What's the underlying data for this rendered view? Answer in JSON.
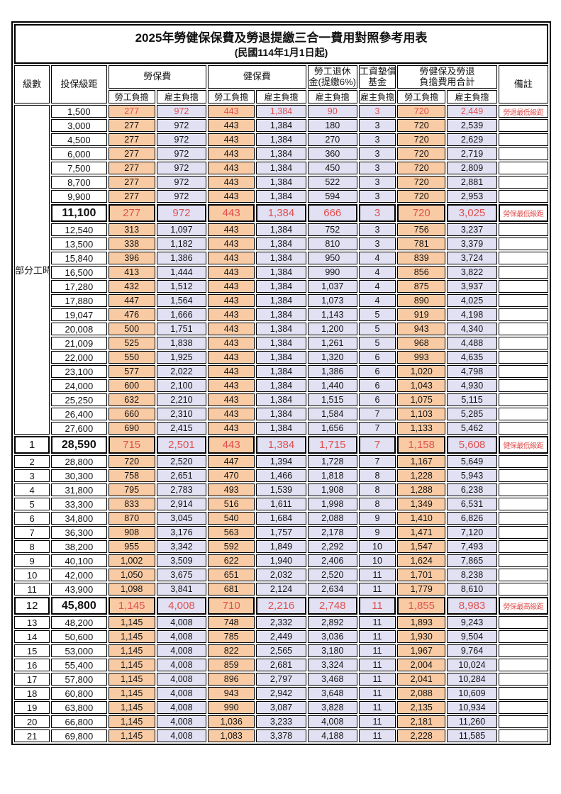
{
  "title": "2025年勞健保保費及勞退提繳三合一費用對照參考用表",
  "subtitle": "(民國114年1月1日起)",
  "colors": {
    "employee_bg": "#F9CBA4",
    "employee_header_bg": "#F5BB85",
    "employer_bg": "#E1E1F3",
    "red_text": "#E0504F",
    "border": "#000000"
  },
  "header": {
    "level": "級數",
    "bracket": "投保級距",
    "labor_ins": "勞保費",
    "health_ins": "健保費",
    "pension_line1": "勞工退休",
    "pension_line2": "金(提繳6%)",
    "wage_fund_line1": "工資墊償",
    "wage_fund_line2": "基金",
    "total_line1": "勞健保及勞退",
    "total_line2": "負擔費用合計",
    "remark": "備註",
    "employee": "勞工負擔",
    "employer": "雇主負擔"
  },
  "part_time": {
    "label": "部分工時",
    "rowspan": 23
  },
  "rows": [
    {
      "level": null,
      "bracket": "1,500",
      "values": [
        "277",
        "972",
        "443",
        "1,384",
        "90",
        "3",
        "720",
        "2,449"
      ],
      "remark": "勞退最低級距",
      "red": true,
      "big": false
    },
    {
      "level": null,
      "bracket": "3,000",
      "values": [
        "277",
        "972",
        "443",
        "1,384",
        "180",
        "3",
        "720",
        "2,539"
      ],
      "remark": "",
      "red": false,
      "big": false
    },
    {
      "level": null,
      "bracket": "4,500",
      "values": [
        "277",
        "972",
        "443",
        "1,384",
        "270",
        "3",
        "720",
        "2,629"
      ],
      "remark": "",
      "red": false,
      "big": false
    },
    {
      "level": null,
      "bracket": "6,000",
      "values": [
        "277",
        "972",
        "443",
        "1,384",
        "360",
        "3",
        "720",
        "2,719"
      ],
      "remark": "",
      "red": false,
      "big": false
    },
    {
      "level": null,
      "bracket": "7,500",
      "values": [
        "277",
        "972",
        "443",
        "1,384",
        "450",
        "3",
        "720",
        "2,809"
      ],
      "remark": "",
      "red": false,
      "big": false
    },
    {
      "level": null,
      "bracket": "8,700",
      "values": [
        "277",
        "972",
        "443",
        "1,384",
        "522",
        "3",
        "720",
        "2,881"
      ],
      "remark": "",
      "red": false,
      "big": false
    },
    {
      "level": null,
      "bracket": "9,900",
      "values": [
        "277",
        "972",
        "443",
        "1,384",
        "594",
        "3",
        "720",
        "2,953"
      ],
      "remark": "",
      "red": false,
      "big": false
    },
    {
      "level": null,
      "bracket": "11,100",
      "values": [
        "277",
        "972",
        "443",
        "1,384",
        "666",
        "3",
        "720",
        "3,025"
      ],
      "remark": "勞保最低級距",
      "red": true,
      "big": true
    },
    {
      "level": null,
      "bracket": "12,540",
      "values": [
        "313",
        "1,097",
        "443",
        "1,384",
        "752",
        "3",
        "756",
        "3,237"
      ],
      "remark": "",
      "red": false,
      "big": false
    },
    {
      "level": null,
      "bracket": "13,500",
      "values": [
        "338",
        "1,182",
        "443",
        "1,384",
        "810",
        "3",
        "781",
        "3,379"
      ],
      "remark": "",
      "red": false,
      "big": false
    },
    {
      "level": null,
      "bracket": "15,840",
      "values": [
        "396",
        "1,386",
        "443",
        "1,384",
        "950",
        "4",
        "839",
        "3,724"
      ],
      "remark": "",
      "red": false,
      "big": false
    },
    {
      "level": null,
      "bracket": "16,500",
      "values": [
        "413",
        "1,444",
        "443",
        "1,384",
        "990",
        "4",
        "856",
        "3,822"
      ],
      "remark": "",
      "red": false,
      "big": false
    },
    {
      "level": null,
      "bracket": "17,280",
      "values": [
        "432",
        "1,512",
        "443",
        "1,384",
        "1,037",
        "4",
        "875",
        "3,937"
      ],
      "remark": "",
      "red": false,
      "big": false
    },
    {
      "level": null,
      "bracket": "17,880",
      "values": [
        "447",
        "1,564",
        "443",
        "1,384",
        "1,073",
        "4",
        "890",
        "4,025"
      ],
      "remark": "",
      "red": false,
      "big": false
    },
    {
      "level": null,
      "bracket": "19,047",
      "values": [
        "476",
        "1,666",
        "443",
        "1,384",
        "1,143",
        "5",
        "919",
        "4,198"
      ],
      "remark": "",
      "red": false,
      "big": false
    },
    {
      "level": null,
      "bracket": "20,008",
      "values": [
        "500",
        "1,751",
        "443",
        "1,384",
        "1,200",
        "5",
        "943",
        "4,340"
      ],
      "remark": "",
      "red": false,
      "big": false
    },
    {
      "level": null,
      "bracket": "21,009",
      "values": [
        "525",
        "1,838",
        "443",
        "1,384",
        "1,261",
        "5",
        "968",
        "4,488"
      ],
      "remark": "",
      "red": false,
      "big": false
    },
    {
      "level": null,
      "bracket": "22,000",
      "values": [
        "550",
        "1,925",
        "443",
        "1,384",
        "1,320",
        "6",
        "993",
        "4,635"
      ],
      "remark": "",
      "red": false,
      "big": false
    },
    {
      "level": null,
      "bracket": "23,100",
      "values": [
        "577",
        "2,022",
        "443",
        "1,384",
        "1,386",
        "6",
        "1,020",
        "4,798"
      ],
      "remark": "",
      "red": false,
      "big": false
    },
    {
      "level": null,
      "bracket": "24,000",
      "values": [
        "600",
        "2,100",
        "443",
        "1,384",
        "1,440",
        "6",
        "1,043",
        "4,930"
      ],
      "remark": "",
      "red": false,
      "big": false
    },
    {
      "level": null,
      "bracket": "25,250",
      "values": [
        "632",
        "2,210",
        "443",
        "1,384",
        "1,515",
        "6",
        "1,075",
        "5,115"
      ],
      "remark": "",
      "red": false,
      "big": false
    },
    {
      "level": null,
      "bracket": "26,400",
      "values": [
        "660",
        "2,310",
        "443",
        "1,384",
        "1,584",
        "7",
        "1,103",
        "5,285"
      ],
      "remark": "",
      "red": false,
      "big": false
    },
    {
      "level": null,
      "bracket": "27,600",
      "values": [
        "690",
        "2,415",
        "443",
        "1,384",
        "1,656",
        "7",
        "1,133",
        "5,462"
      ],
      "remark": "",
      "red": false,
      "big": false
    },
    {
      "level": "1",
      "bracket": "28,590",
      "values": [
        "715",
        "2,501",
        "443",
        "1,384",
        "1,715",
        "7",
        "1,158",
        "5,608"
      ],
      "remark": "健保最低級距",
      "red": true,
      "big": true
    },
    {
      "level": "2",
      "bracket": "28,800",
      "values": [
        "720",
        "2,520",
        "447",
        "1,394",
        "1,728",
        "7",
        "1,167",
        "5,649"
      ],
      "remark": "",
      "red": false,
      "big": false
    },
    {
      "level": "3",
      "bracket": "30,300",
      "values": [
        "758",
        "2,651",
        "470",
        "1,466",
        "1,818",
        "8",
        "1,228",
        "5,943"
      ],
      "remark": "",
      "red": false,
      "big": false
    },
    {
      "level": "4",
      "bracket": "31,800",
      "values": [
        "795",
        "2,783",
        "493",
        "1,539",
        "1,908",
        "8",
        "1,288",
        "6,238"
      ],
      "remark": "",
      "red": false,
      "big": false
    },
    {
      "level": "5",
      "bracket": "33,300",
      "values": [
        "833",
        "2,914",
        "516",
        "1,611",
        "1,998",
        "8",
        "1,349",
        "6,531"
      ],
      "remark": "",
      "red": false,
      "big": false
    },
    {
      "level": "6",
      "bracket": "34,800",
      "values": [
        "870",
        "3,045",
        "540",
        "1,684",
        "2,088",
        "9",
        "1,410",
        "6,826"
      ],
      "remark": "",
      "red": false,
      "big": false
    },
    {
      "level": "7",
      "bracket": "36,300",
      "values": [
        "908",
        "3,176",
        "563",
        "1,757",
        "2,178",
        "9",
        "1,471",
        "7,120"
      ],
      "remark": "",
      "red": false,
      "big": false
    },
    {
      "level": "8",
      "bracket": "38,200",
      "values": [
        "955",
        "3,342",
        "592",
        "1,849",
        "2,292",
        "10",
        "1,547",
        "7,493"
      ],
      "remark": "",
      "red": false,
      "big": false
    },
    {
      "level": "9",
      "bracket": "40,100",
      "values": [
        "1,002",
        "3,509",
        "622",
        "1,940",
        "2,406",
        "10",
        "1,624",
        "7,865"
      ],
      "remark": "",
      "red": false,
      "big": false
    },
    {
      "level": "10",
      "bracket": "42,000",
      "values": [
        "1,050",
        "3,675",
        "651",
        "2,032",
        "2,520",
        "11",
        "1,701",
        "8,238"
      ],
      "remark": "",
      "red": false,
      "big": false
    },
    {
      "level": "11",
      "bracket": "43,900",
      "values": [
        "1,098",
        "3,841",
        "681",
        "2,124",
        "2,634",
        "11",
        "1,779",
        "8,610"
      ],
      "remark": "",
      "red": false,
      "big": false
    },
    {
      "level": "12",
      "bracket": "45,800",
      "values": [
        "1,145",
        "4,008",
        "710",
        "2,216",
        "2,748",
        "11",
        "1,855",
        "8,983"
      ],
      "remark": "勞保最高級距",
      "red": true,
      "big": true
    },
    {
      "level": "13",
      "bracket": "48,200",
      "values": [
        "1,145",
        "4,008",
        "748",
        "2,332",
        "2,892",
        "11",
        "1,893",
        "9,243"
      ],
      "remark": "",
      "red": false,
      "big": false
    },
    {
      "level": "14",
      "bracket": "50,600",
      "values": [
        "1,145",
        "4,008",
        "785",
        "2,449",
        "3,036",
        "11",
        "1,930",
        "9,504"
      ],
      "remark": "",
      "red": false,
      "big": false
    },
    {
      "level": "15",
      "bracket": "53,000",
      "values": [
        "1,145",
        "4,008",
        "822",
        "2,565",
        "3,180",
        "11",
        "1,967",
        "9,764"
      ],
      "remark": "",
      "red": false,
      "big": false
    },
    {
      "level": "16",
      "bracket": "55,400",
      "values": [
        "1,145",
        "4,008",
        "859",
        "2,681",
        "3,324",
        "11",
        "2,004",
        "10,024"
      ],
      "remark": "",
      "red": false,
      "big": false
    },
    {
      "level": "17",
      "bracket": "57,800",
      "values": [
        "1,145",
        "4,008",
        "896",
        "2,797",
        "3,468",
        "11",
        "2,041",
        "10,284"
      ],
      "remark": "",
      "red": false,
      "big": false
    },
    {
      "level": "18",
      "bracket": "60,800",
      "values": [
        "1,145",
        "4,008",
        "943",
        "2,942",
        "3,648",
        "11",
        "2,088",
        "10,609"
      ],
      "remark": "",
      "red": false,
      "big": false
    },
    {
      "level": "19",
      "bracket": "63,800",
      "values": [
        "1,145",
        "4,008",
        "990",
        "3,087",
        "3,828",
        "11",
        "2,135",
        "10,934"
      ],
      "remark": "",
      "red": false,
      "big": false
    },
    {
      "level": "20",
      "bracket": "66,800",
      "values": [
        "1,145",
        "4,008",
        "1,036",
        "3,233",
        "4,008",
        "11",
        "2,181",
        "11,260"
      ],
      "remark": "",
      "red": false,
      "big": false
    },
    {
      "level": "21",
      "bracket": "69,800",
      "values": [
        "1,145",
        "4,008",
        "1,083",
        "3,378",
        "4,188",
        "11",
        "2,228",
        "11,585"
      ],
      "remark": "",
      "red": false,
      "big": false
    }
  ]
}
